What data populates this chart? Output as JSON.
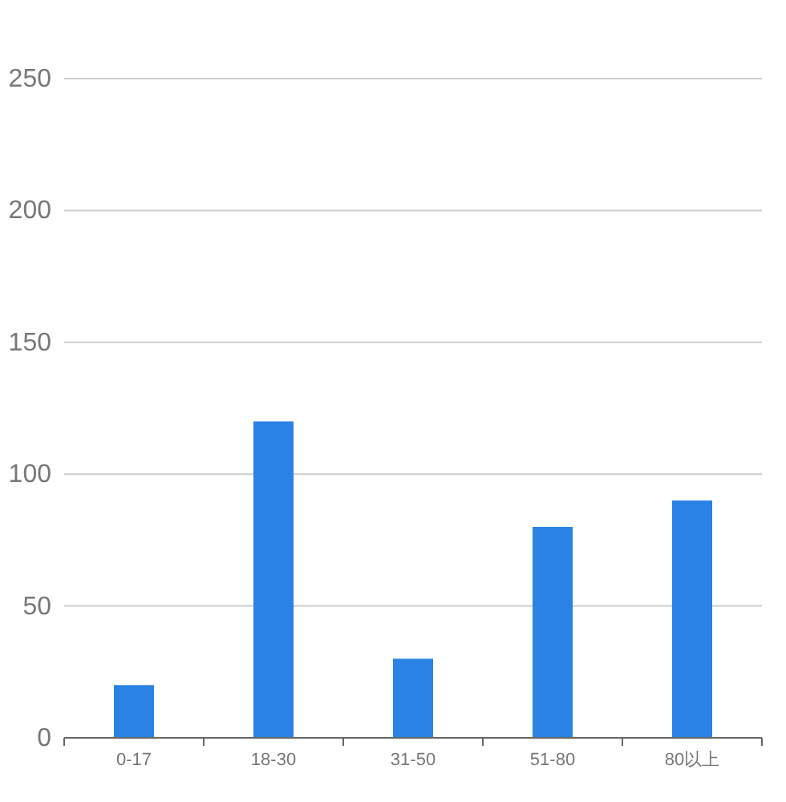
{
  "chart_data": {
    "type": "bar",
    "categories": [
      "0-17",
      "18-30",
      "31-50",
      "51-80",
      "80以上"
    ],
    "values": [
      20,
      120,
      30,
      80,
      90
    ],
    "color": "#2a83e4",
    "ylim": [
      0,
      250
    ],
    "yticks": [
      0,
      50,
      100,
      150,
      200,
      250
    ],
    "grid": "y"
  }
}
